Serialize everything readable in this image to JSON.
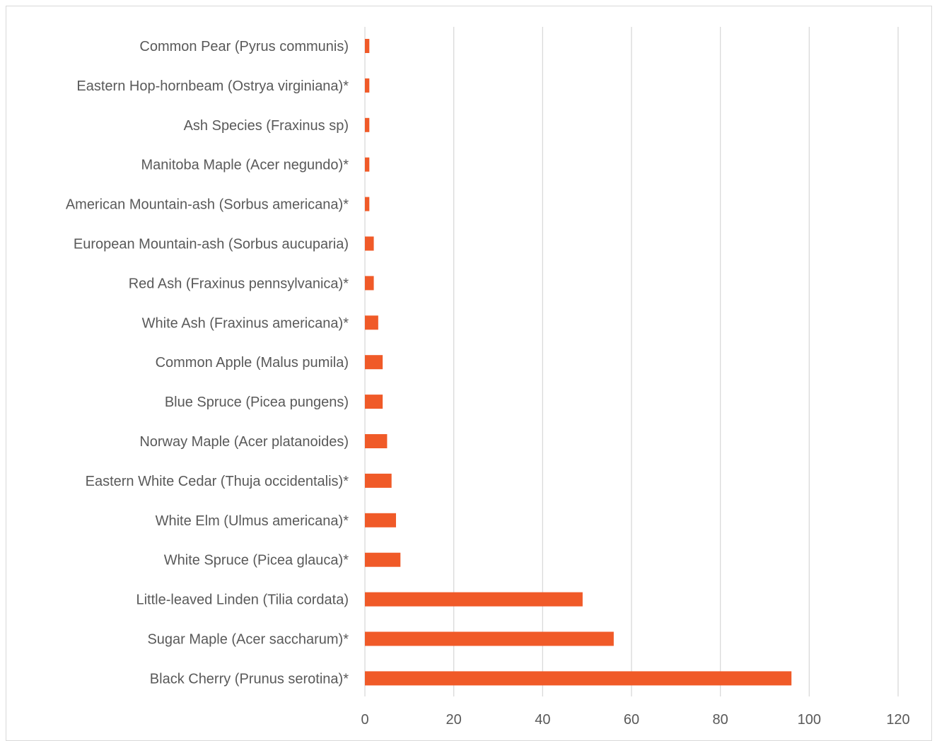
{
  "chart_data": {
    "type": "bar",
    "orientation": "horizontal",
    "categories": [
      "Common Pear (Pyrus communis)",
      "Eastern Hop-hornbeam (Ostrya virginiana)*",
      "Ash Species (Fraxinus sp)",
      "Manitoba Maple (Acer negundo)*",
      "American Mountain-ash (Sorbus americana)*",
      "European Mountain-ash (Sorbus aucuparia)",
      "Red Ash (Fraxinus pennsylvanica)*",
      "White Ash (Fraxinus americana)*",
      "Common Apple (Malus pumila)",
      "Blue Spruce (Picea pungens)",
      "Norway Maple (Acer platanoides)",
      "Eastern White Cedar (Thuja occidentalis)*",
      "White Elm (Ulmus americana)*",
      "White Spruce (Picea glauca)*",
      "Little-leaved Linden (Tilia cordata)",
      "Sugar Maple (Acer saccharum)*",
      "Black Cherry (Prunus serotina)*"
    ],
    "values": [
      1,
      1,
      1,
      1,
      1,
      2,
      2,
      3,
      4,
      4,
      5,
      6,
      7,
      8,
      49,
      56,
      96
    ],
    "xlim": [
      0,
      120
    ],
    "xticks": [
      0,
      20,
      40,
      60,
      80,
      100,
      120
    ],
    "tick_labels": [
      "0",
      "20",
      "40",
      "60",
      "80",
      "100",
      "120"
    ],
    "title": "",
    "xlabel": "",
    "ylabel": "",
    "grid": "vertical",
    "legend": "none",
    "bar_color": "#F05A28",
    "grid_color": "#d9d9d9",
    "text_color": "#595959"
  }
}
